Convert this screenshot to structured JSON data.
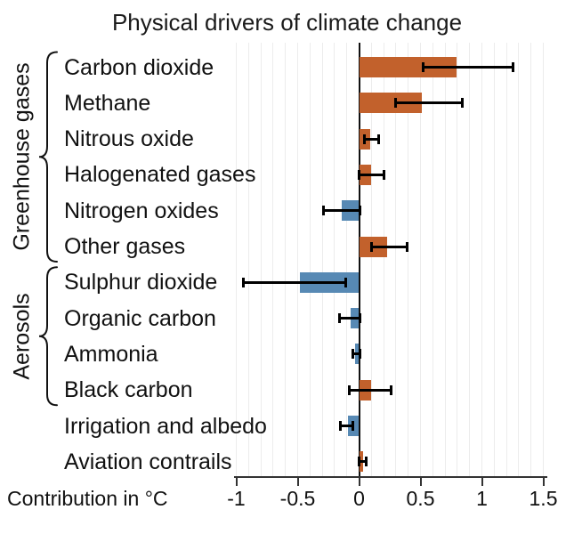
{
  "title": "Physical drivers of climate change",
  "chart_data": {
    "type": "bar",
    "orientation": "horizontal",
    "title": "Physical drivers of climate change",
    "xlabel": "Contribution in °C",
    "xlim": [
      -1.05,
      1.55
    ],
    "xticks": [
      -1,
      -0.5,
      0,
      0.5,
      1,
      1.5
    ],
    "xtick_labels": [
      "-1",
      "-0.5",
      "0",
      "0.5",
      "1",
      "1.5"
    ],
    "grid": "vertical minor gridlines every 0.1",
    "legend": "none",
    "colors": {
      "positive_bar": "#c2612c",
      "negative_bar": "#5789b4",
      "error_bar": "#000000",
      "gridline": "#ececec",
      "axis": "#333333",
      "text": "#111111"
    },
    "groups": [
      {
        "label": "Greenhouse gases",
        "items": [
          "Carbon dioxide",
          "Methane",
          "Nitrous oxide",
          "Halogenated gases",
          "Nitrogen oxides",
          "Other gases"
        ]
      },
      {
        "label": "Aerosols",
        "items": [
          "Sulphur dioxide",
          "Organic carbon",
          "Ammonia",
          "Black carbon"
        ]
      },
      {
        "label": "",
        "items": [
          "Irrigation and albedo",
          "Aviation contrails"
        ]
      }
    ],
    "rows": [
      {
        "label": "Carbon dioxide",
        "group": "Greenhouse gases",
        "value": 0.79,
        "ci": [
          0.52,
          1.25
        ]
      },
      {
        "label": "Methane",
        "group": "Greenhouse gases",
        "value": 0.51,
        "ci": [
          0.3,
          0.84
        ]
      },
      {
        "label": "Nitrous oxide",
        "group": "Greenhouse gases",
        "value": 0.09,
        "ci": [
          0.04,
          0.16
        ]
      },
      {
        "label": "Halogenated gases",
        "group": "Greenhouse gases",
        "value": 0.1,
        "ci": [
          0.0,
          0.2
        ]
      },
      {
        "label": "Nitrogen oxides",
        "group": "Greenhouse gases",
        "value": -0.14,
        "ci": [
          -0.29,
          0.01
        ]
      },
      {
        "label": "Other gases",
        "group": "Greenhouse gases",
        "value": 0.23,
        "ci": [
          0.1,
          0.39
        ]
      },
      {
        "label": "Sulphur dioxide",
        "group": "Aerosols",
        "value": -0.48,
        "ci": [
          -0.94,
          -0.11
        ]
      },
      {
        "label": "Organic carbon",
        "group": "Aerosols",
        "value": -0.07,
        "ci": [
          -0.16,
          0.01
        ]
      },
      {
        "label": "Ammonia",
        "group": "Aerosols",
        "value": -0.03,
        "ci": [
          -0.05,
          0.01
        ]
      },
      {
        "label": "Black carbon",
        "group": "Aerosols",
        "value": 0.1,
        "ci": [
          -0.08,
          0.26
        ]
      },
      {
        "label": "Irrigation and albedo",
        "group": "",
        "value": -0.09,
        "ci": [
          -0.15,
          -0.05
        ]
      },
      {
        "label": "Aviation contrails",
        "group": "",
        "value": 0.03,
        "ci": [
          0.0,
          0.06
        ]
      }
    ]
  }
}
